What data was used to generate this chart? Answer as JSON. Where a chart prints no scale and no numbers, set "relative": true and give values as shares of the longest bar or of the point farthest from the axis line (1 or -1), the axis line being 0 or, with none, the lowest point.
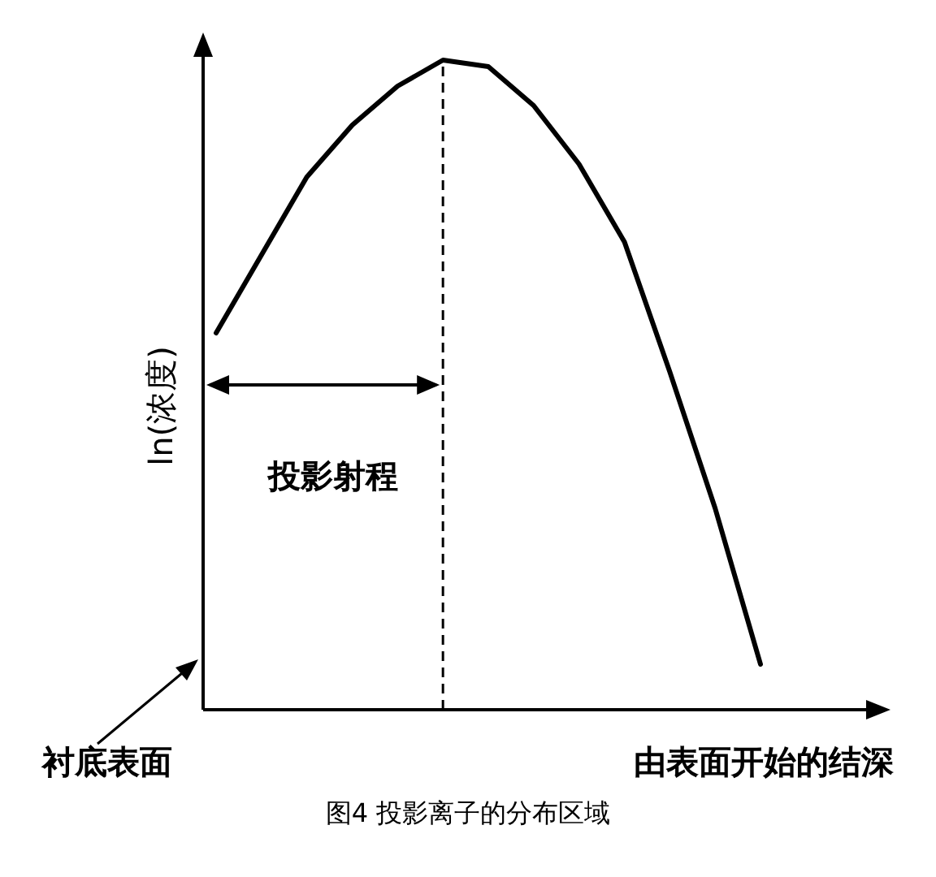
{
  "chart_data": {
    "type": "line",
    "relative": true,
    "xlabel": "由表面开始的结深",
    "ylabel": "ln(浓度)",
    "categories": [
      null,
      null,
      null,
      null,
      null,
      null,
      null,
      null,
      null,
      null,
      null,
      null,
      null
    ],
    "series": [
      {
        "color": "#000000",
        "values": [
          0.58,
          0.7,
          0.82,
          0.9,
          0.96,
          1,
          0.99,
          0.93,
          0.84,
          0.72,
          0.52,
          0.31,
          0.07
        ]
      }
    ],
    "annotations": [
      "投影射程",
      "衬底表面",
      "图4 投影离子的分布区域"
    ],
    "marker": "none",
    "line_style": "solid"
  }
}
